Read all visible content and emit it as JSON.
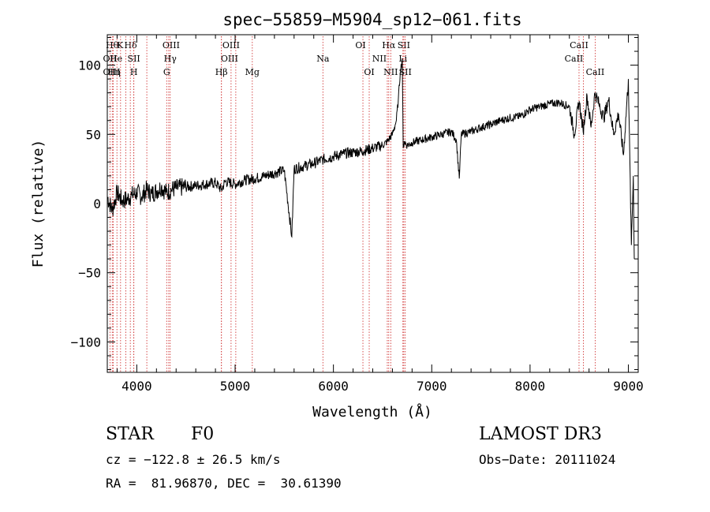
{
  "chart_data": {
    "type": "line",
    "title": "spec−55859−M5904_sp12−061.fits",
    "xlabel": "Wavelength (Å)",
    "ylabel": "Flux (relative)",
    "xlim": [
      3700,
      9100
    ],
    "ylim": [
      -122,
      122
    ],
    "x_ticks": [
      4000,
      5000,
      6000,
      7000,
      8000,
      9000
    ],
    "y_ticks": [
      -100,
      -50,
      0,
      50,
      100
    ],
    "y_tick_labels": [
      "−100",
      "−50",
      "0",
      "50",
      "100"
    ],
    "grid": false,
    "series": [
      {
        "name": "flux",
        "x": [
          3700,
          3750,
          3800,
          3850,
          3900,
          3950,
          4000,
          4050,
          4100,
          4150,
          4200,
          4250,
          4300,
          4350,
          4400,
          4500,
          4600,
          4700,
          4800,
          4861,
          4900,
          5000,
          5100,
          5200,
          5300,
          5400,
          5500,
          5577,
          5600,
          5700,
          5800,
          5900,
          6000,
          6100,
          6200,
          6300,
          6400,
          6500,
          6550,
          6600,
          6640,
          6660,
          6680,
          6700,
          6710,
          6720,
          6750,
          6800,
          6900,
          7000,
          7100,
          7200,
          7250,
          7280,
          7300,
          7400,
          7500,
          7600,
          7700,
          7800,
          7900,
          8000,
          8100,
          8200,
          8300,
          8400,
          8450,
          8500,
          8540,
          8580,
          8620,
          8660,
          8700,
          8750,
          8800,
          8850,
          8900,
          8950,
          9000,
          9030,
          9050,
          9060
        ],
        "y": [
          5,
          -5,
          8,
          2,
          3,
          6,
          8,
          5,
          10,
          7,
          9,
          12,
          8,
          10,
          11,
          12,
          13,
          14,
          15,
          10,
          16,
          14,
          17,
          18,
          20,
          22,
          24,
          -24,
          25,
          27,
          29,
          32,
          34,
          36,
          37,
          38,
          40,
          42,
          45,
          50,
          60,
          75,
          95,
          105,
          40,
          45,
          42,
          44,
          46,
          48,
          50,
          52,
          46,
          18,
          50,
          52,
          55,
          57,
          60,
          62,
          63,
          68,
          70,
          72,
          73,
          70,
          50,
          74,
          52,
          78,
          55,
          80,
          72,
          62,
          75,
          50,
          65,
          35,
          90,
          -30,
          20,
          -40
        ]
      }
    ],
    "lines": [
      {
        "wave": 3750,
        "row": 0,
        "label": "Hθ",
        "dx": 0
      },
      {
        "wave": 3798,
        "row": 0,
        "label": "K",
        "dx": 4
      },
      {
        "wave": 3889,
        "row": 0,
        "label": "Hδ",
        "dx": 6
      },
      {
        "wave": 4102,
        "row": 0,
        "label": "",
        "dx": 0
      },
      {
        "wave": 4325,
        "row": 0,
        "label": "OIII",
        "dx": 3
      },
      {
        "wave": 4861,
        "row": 0,
        "label": "",
        "dx": 0
      },
      {
        "wave": 4959,
        "row": 0,
        "label": "OIII",
        "dx": 0
      },
      {
        "wave": 6300,
        "row": 0,
        "label": "OI",
        "dx": -3
      },
      {
        "wave": 6563,
        "row": 0,
        "label": "Hα",
        "dx": 0
      },
      {
        "wave": 6716,
        "row": 0,
        "label": "SII",
        "dx": 0
      },
      {
        "wave": 8498,
        "row": 0,
        "label": "CaII",
        "dx": 0
      },
      {
        "wave": 3727,
        "row": 1,
        "label": "OII",
        "dx": 0
      },
      {
        "wave": 3934,
        "row": 1,
        "label": "He",
        "dx": -18
      },
      {
        "wave": 3970,
        "row": 1,
        "label": "SII",
        "dx": 0
      },
      {
        "wave": 4340,
        "row": 1,
        "label": "Hγ",
        "dx": 0
      },
      {
        "wave": 5007,
        "row": 1,
        "label": "OIII",
        "dx": -8
      },
      {
        "wave": 5893,
        "row": 1,
        "label": "Na",
        "dx": 0
      },
      {
        "wave": 6548,
        "row": 1,
        "label": "NII",
        "dx": -10
      },
      {
        "wave": 6707,
        "row": 1,
        "label": "Li",
        "dx": 0
      },
      {
        "wave": 8542,
        "row": 1,
        "label": "CaII",
        "dx": -12
      },
      {
        "wave": 3760,
        "row": 2,
        "label": "OIII",
        "dx": -2
      },
      {
        "wave": 3835,
        "row": 2,
        "label": "Hη",
        "dx": -8
      },
      {
        "wave": 3970,
        "row": 2,
        "label": "H",
        "dx": 0
      },
      {
        "wave": 4304,
        "row": 2,
        "label": "G",
        "dx": 0
      },
      {
        "wave": 4861,
        "row": 2,
        "label": "Hβ",
        "dx": 0
      },
      {
        "wave": 5175,
        "row": 2,
        "label": "Mg",
        "dx": 0
      },
      {
        "wave": 6364,
        "row": 2,
        "label": "OI",
        "dx": 0
      },
      {
        "wave": 6583,
        "row": 2,
        "label": "NII",
        "dx": 0
      },
      {
        "wave": 6731,
        "row": 2,
        "label": "SII",
        "dx": 0
      },
      {
        "wave": 8662,
        "row": 2,
        "label": "CaII",
        "dx": 0
      }
    ]
  },
  "info": {
    "object_class": "STAR",
    "subclass": "F0",
    "survey": "LAMOST DR3",
    "cz": "cz = −122.8 ± 26.5 km/s",
    "obs_date": "Obs−Date: 20111024",
    "coords": "RA =  81.96870, DEC =  30.61390"
  },
  "colors": {
    "axis": "#000000",
    "spectrum": "#000000",
    "line_marker": "#cc2222"
  }
}
